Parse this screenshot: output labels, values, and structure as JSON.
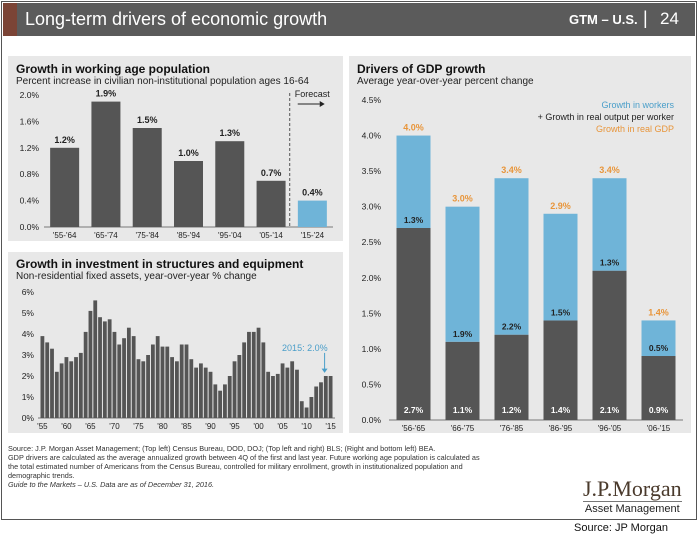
{
  "header": {
    "title": "Long-term drivers of economic growth",
    "gtm": "GTM – U.S.",
    "separator": "|",
    "page_number": "24"
  },
  "colors": {
    "bar_dark": "#555555",
    "bar_blue": "#6fb4d8",
    "accent_orange": "#e8953a",
    "panel_bg": "#e8e8e8",
    "header_bg": "#5b5b5b"
  },
  "chart_data": [
    {
      "type": "bar",
      "title": "Growth in working age population",
      "subtitle": "Percent increase in civilian non-institutional population ages 16-64",
      "categories": [
        "'55-'64",
        "'65-'74",
        "'75-'84",
        "'85-'94",
        "'95-'04",
        "'05-'14",
        "'15-'24"
      ],
      "values": [
        1.2,
        1.9,
        1.5,
        1.0,
        1.3,
        0.7,
        0.4
      ],
      "value_labels": [
        "1.2%",
        "1.9%",
        "1.5%",
        "1.0%",
        "1.3%",
        "0.7%",
        "0.4%"
      ],
      "forecast_index": 6,
      "annotation": "Forecast",
      "ylim": [
        0,
        2.0
      ],
      "yticks": [
        "0.0%",
        "0.4%",
        "0.8%",
        "1.2%",
        "1.6%",
        "2.0%"
      ]
    },
    {
      "type": "bar",
      "title": "Growth in investment in structures and equipment",
      "subtitle": "Non-residential fixed assets, year-over-year % change",
      "x": [
        1955,
        1956,
        1957,
        1958,
        1959,
        1960,
        1961,
        1962,
        1963,
        1964,
        1965,
        1966,
        1967,
        1968,
        1969,
        1970,
        1971,
        1972,
        1973,
        1974,
        1975,
        1976,
        1977,
        1978,
        1979,
        1980,
        1981,
        1982,
        1983,
        1984,
        1985,
        1986,
        1987,
        1988,
        1989,
        1990,
        1991,
        1992,
        1993,
        1994,
        1995,
        1996,
        1997,
        1998,
        1999,
        2000,
        2001,
        2002,
        2003,
        2004,
        2005,
        2006,
        2007,
        2008,
        2009,
        2010,
        2011,
        2012,
        2013,
        2014,
        2015
      ],
      "values": [
        3.9,
        3.6,
        3.3,
        2.2,
        2.6,
        2.9,
        2.7,
        2.9,
        3.1,
        4.1,
        5.1,
        5.6,
        4.8,
        4.6,
        4.7,
        4.1,
        3.5,
        3.8,
        4.3,
        3.9,
        2.8,
        2.7,
        3.0,
        3.5,
        3.9,
        3.4,
        3.4,
        2.9,
        2.7,
        3.5,
        3.5,
        2.8,
        2.4,
        2.6,
        2.4,
        2.2,
        1.6,
        1.3,
        1.6,
        2.0,
        2.7,
        3.0,
        3.6,
        4.1,
        4.1,
        4.3,
        3.6,
        2.2,
        2.0,
        2.1,
        2.6,
        2.4,
        2.7,
        2.3,
        0.8,
        0.5,
        1.0,
        1.5,
        1.7,
        2.0,
        2.0
      ],
      "xticks": [
        "'55",
        "'60",
        "'65",
        "'70",
        "'75",
        "'80",
        "'85",
        "'90",
        "'95",
        "'00",
        "'05",
        "'10",
        "'15"
      ],
      "annotation": "2015: 2.0%",
      "ylim": [
        0,
        6
      ],
      "yticks": [
        "0%",
        "1%",
        "2%",
        "3%",
        "4%",
        "5%",
        "6%"
      ]
    },
    {
      "type": "bar",
      "title": "Drivers of GDP growth",
      "subtitle": "Average year-over-year percent change",
      "categories": [
        "'56-'65",
        "'66-'75",
        "'76-'85",
        "'86-'95",
        "'96-'05",
        "'06-'15"
      ],
      "series": [
        {
          "name": "Growth in real output per worker",
          "values": [
            2.7,
            1.1,
            1.2,
            1.4,
            2.1,
            0.9
          ],
          "labels": [
            "2.7%",
            "1.1%",
            "1.2%",
            "1.4%",
            "2.1%",
            "0.9%"
          ]
        },
        {
          "name": "Growth in workers",
          "values": [
            1.3,
            1.9,
            2.2,
            1.5,
            1.3,
            0.5
          ],
          "labels": [
            "1.3%",
            "1.9%",
            "2.2%",
            "1.5%",
            "1.3%",
            "0.5%"
          ]
        }
      ],
      "totals": {
        "name": "Growth in real GDP",
        "values": [
          4.0,
          3.0,
          3.4,
          2.9,
          3.4,
          1.4
        ],
        "labels": [
          "4.0%",
          "3.0%",
          "3.4%",
          "2.9%",
          "3.4%",
          "1.4%"
        ]
      },
      "legend": [
        "Growth in workers",
        "+ Growth in real output per worker",
        "Growth in real GDP"
      ],
      "legend_placement": "top-right",
      "ylim": [
        0,
        4.5
      ],
      "yticks": [
        "0.0%",
        "0.5%",
        "1.0%",
        "1.5%",
        "2.0%",
        "2.5%",
        "3.0%",
        "3.5%",
        "4.0%",
        "4.5%"
      ],
      "stacked": true
    }
  ],
  "footer": {
    "lines": [
      "Source: J.P. Morgan Asset Management; (Top left) Census Bureau, DOD, DOJ; (Top left and right) BLS; (Right and bottom left) BEA.",
      "GDP drivers are calculated as the average annualized growth between 4Q of the first and last year. Future working age population is calculated as",
      "the total estimated number of Americans from the Census Bureau, controlled for military enrollment, growth in institutionalized population and",
      "demographic trends.",
      "Guide to the Markets – U.S. Data are as of December 31, 2016."
    ]
  },
  "logo": {
    "line1": "J.P.Morgan",
    "line2": "Asset Management"
  },
  "source_note": "Source: JP Morgan"
}
